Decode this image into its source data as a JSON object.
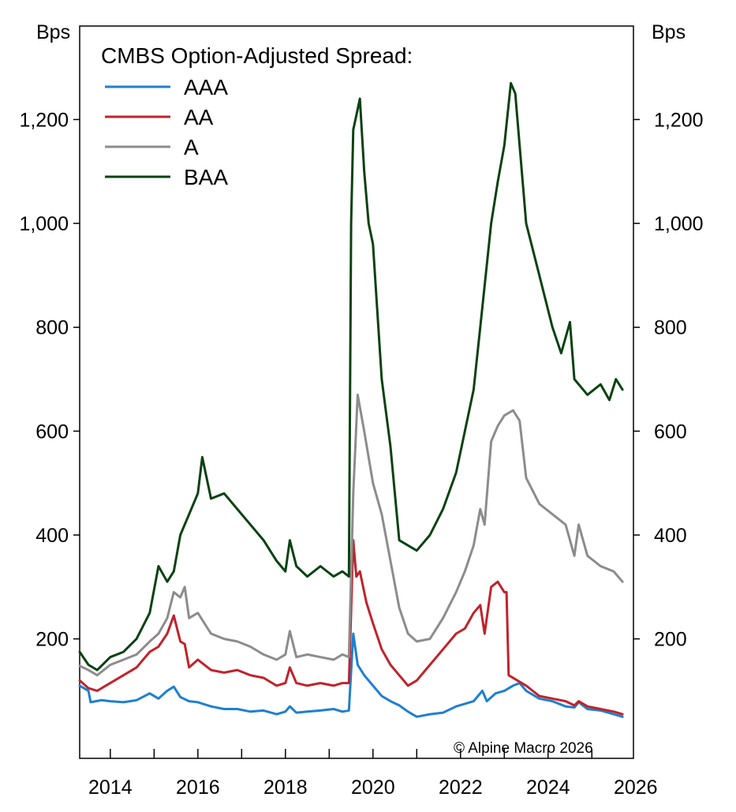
{
  "chart_data": {
    "type": "line",
    "title": "CMBS Option-Adjusted Spread:",
    "y_unit_left": "Bps",
    "y_unit_right": "Bps",
    "ylim": [
      -30,
      1380
    ],
    "yticks": [
      200,
      400,
      600,
      800,
      1000,
      1200
    ],
    "ytick_labels": [
      "200",
      "400",
      "600",
      "800",
      "1,000",
      "1,200"
    ],
    "xlim": [
      2013.3,
      2025.95
    ],
    "xticks": [
      2014,
      2016,
      2018,
      2020,
      2022,
      2024,
      2026
    ],
    "xtick_labels": [
      "2014",
      "2016",
      "2018",
      "2020",
      "2022",
      "2024",
      "2026"
    ],
    "x_minor_ticks": [
      2015,
      2017,
      2019,
      2021,
      2023,
      2025
    ],
    "legend_position": "top-left",
    "annotation": "© Alpine Macro 2026",
    "series": [
      {
        "name": "AAA",
        "color": "#1f7fd0",
        "x": [
          2013.3,
          2013.5,
          2013.55,
          2013.8,
          2014.0,
          2014.3,
          2014.6,
          2014.9,
          2015.1,
          2015.3,
          2015.45,
          2015.6,
          2015.8,
          2016.0,
          2016.3,
          2016.6,
          2016.9,
          2017.2,
          2017.5,
          2017.8,
          2018.0,
          2018.1,
          2018.25,
          2018.5,
          2018.8,
          2019.1,
          2019.3,
          2019.45,
          2019.55,
          2019.65,
          2019.8,
          2020.0,
          2020.2,
          2020.4,
          2020.6,
          2020.8,
          2021.0,
          2021.3,
          2021.6,
          2021.9,
          2022.1,
          2022.3,
          2022.5,
          2022.6,
          2022.8,
          2023.0,
          2023.2,
          2023.35,
          2023.5,
          2023.8,
          2024.1,
          2024.4,
          2024.6,
          2024.7,
          2024.9,
          2025.2,
          2025.5,
          2025.7
        ],
        "values": [
          110,
          100,
          78,
          82,
          80,
          78,
          82,
          95,
          85,
          100,
          108,
          88,
          80,
          78,
          70,
          65,
          65,
          60,
          62,
          55,
          60,
          70,
          58,
          60,
          62,
          65,
          60,
          62,
          210,
          150,
          130,
          110,
          90,
          80,
          72,
          60,
          50,
          55,
          58,
          70,
          75,
          80,
          100,
          80,
          95,
          100,
          110,
          115,
          100,
          85,
          80,
          70,
          68,
          78,
          65,
          62,
          55,
          50
        ]
      },
      {
        "name": "AA",
        "color": "#c0232b",
        "x": [
          2013.3,
          2013.5,
          2013.7,
          2014.0,
          2014.3,
          2014.6,
          2014.9,
          2015.1,
          2015.3,
          2015.45,
          2015.6,
          2015.7,
          2015.8,
          2016.0,
          2016.3,
          2016.6,
          2016.9,
          2017.2,
          2017.5,
          2017.8,
          2018.0,
          2018.1,
          2018.25,
          2018.5,
          2018.8,
          2019.1,
          2019.3,
          2019.45,
          2019.55,
          2019.62,
          2019.7,
          2019.85,
          2020.0,
          2020.2,
          2020.4,
          2020.6,
          2020.8,
          2021.0,
          2021.3,
          2021.6,
          2021.9,
          2022.1,
          2022.3,
          2022.45,
          2022.55,
          2022.7,
          2022.85,
          2023.0,
          2023.05,
          2023.1,
          2023.3,
          2023.5,
          2023.8,
          2024.1,
          2024.4,
          2024.6,
          2024.7,
          2024.9,
          2025.2,
          2025.5,
          2025.7
        ],
        "values": [
          120,
          105,
          100,
          115,
          130,
          145,
          175,
          185,
          210,
          245,
          195,
          190,
          145,
          160,
          140,
          135,
          140,
          130,
          125,
          110,
          115,
          145,
          115,
          110,
          115,
          110,
          115,
          115,
          390,
          320,
          330,
          270,
          230,
          180,
          150,
          130,
          110,
          120,
          150,
          180,
          210,
          220,
          250,
          265,
          210,
          300,
          310,
          290,
          290,
          130,
          120,
          110,
          90,
          85,
          80,
          72,
          80,
          70,
          65,
          60,
          55
        ]
      },
      {
        "name": "A",
        "color": "#8c8c8c",
        "x": [
          2013.3,
          2013.5,
          2013.7,
          2014.0,
          2014.3,
          2014.6,
          2014.9,
          2015.1,
          2015.3,
          2015.45,
          2015.6,
          2015.7,
          2015.8,
          2016.0,
          2016.3,
          2016.6,
          2016.9,
          2017.2,
          2017.5,
          2017.8,
          2018.0,
          2018.1,
          2018.25,
          2018.5,
          2018.8,
          2019.1,
          2019.3,
          2019.45,
          2019.55,
          2019.65,
          2019.8,
          2020.0,
          2020.2,
          2020.4,
          2020.6,
          2020.8,
          2021.0,
          2021.3,
          2021.6,
          2021.9,
          2022.1,
          2022.3,
          2022.45,
          2022.55,
          2022.7,
          2022.85,
          2023.0,
          2023.2,
          2023.35,
          2023.5,
          2023.8,
          2024.1,
          2024.4,
          2024.6,
          2024.7,
          2024.9,
          2025.2,
          2025.5,
          2025.7
        ],
        "values": [
          148,
          140,
          130,
          150,
          160,
          170,
          195,
          210,
          240,
          290,
          280,
          300,
          240,
          250,
          210,
          200,
          195,
          185,
          170,
          160,
          170,
          215,
          165,
          170,
          165,
          160,
          170,
          165,
          480,
          670,
          600,
          500,
          440,
          350,
          260,
          210,
          195,
          200,
          240,
          290,
          330,
          380,
          450,
          420,
          580,
          610,
          630,
          640,
          620,
          510,
          460,
          440,
          420,
          360,
          420,
          360,
          340,
          330,
          310
        ]
      },
      {
        "name": "BAA",
        "color": "#0b4211",
        "x": [
          2013.3,
          2013.5,
          2013.7,
          2014.0,
          2014.3,
          2014.6,
          2014.9,
          2015.1,
          2015.3,
          2015.45,
          2015.6,
          2015.8,
          2016.0,
          2016.1,
          2016.3,
          2016.6,
          2016.9,
          2017.2,
          2017.5,
          2017.8,
          2018.0,
          2018.1,
          2018.25,
          2018.5,
          2018.8,
          2019.1,
          2019.3,
          2019.45,
          2019.5,
          2019.55,
          2019.6,
          2019.7,
          2019.8,
          2019.9,
          2020.0,
          2020.2,
          2020.4,
          2020.6,
          2020.8,
          2021.0,
          2021.3,
          2021.6,
          2021.9,
          2022.1,
          2022.3,
          2022.45,
          2022.6,
          2022.7,
          2022.85,
          2023.0,
          2023.15,
          2023.25,
          2023.35,
          2023.5,
          2023.8,
          2024.1,
          2024.3,
          2024.5,
          2024.6,
          2024.7,
          2024.9,
          2025.2,
          2025.4,
          2025.55,
          2025.7
        ],
        "values": [
          175,
          150,
          140,
          165,
          175,
          200,
          250,
          340,
          310,
          330,
          400,
          440,
          480,
          550,
          470,
          480,
          450,
          420,
          390,
          350,
          330,
          390,
          340,
          320,
          340,
          320,
          330,
          320,
          1000,
          1180,
          1200,
          1240,
          1100,
          1000,
          960,
          700,
          570,
          390,
          380,
          370,
          400,
          450,
          520,
          600,
          680,
          800,
          920,
          1000,
          1080,
          1150,
          1270,
          1250,
          1150,
          1000,
          900,
          800,
          750,
          810,
          700,
          690,
          670,
          690,
          660,
          700,
          680
        ]
      }
    ]
  }
}
